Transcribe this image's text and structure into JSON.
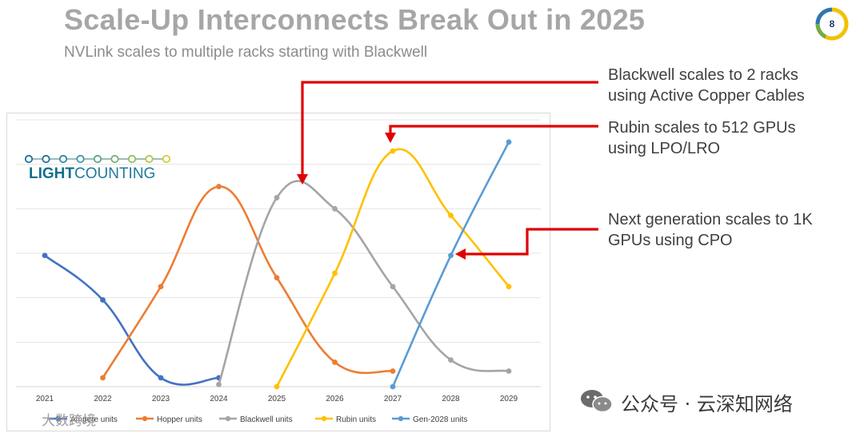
{
  "slide": {
    "title": "Scale-Up Interconnects Break Out in 2025",
    "subtitle": "NVLink scales to multiple racks starting with Blackwell",
    "page_number": "8"
  },
  "callouts": [
    {
      "line1": "Blackwell scales to 2 racks",
      "line2": "using Active Copper Cables"
    },
    {
      "line1": "Rubin scales to 512 GPUs",
      "line2": "using LPO/LRO"
    },
    {
      "line1": "Next generation scales to 1K",
      "line2": "GPUs using CPO"
    }
  ],
  "logo": {
    "text_part1": "LIGHT",
    "text_part2": "COUNTING"
  },
  "watermark": {
    "text": "公众号 · 云深知网络",
    "corner_text": "大数跨境"
  },
  "colors": {
    "arrow": "#e00000",
    "ampere": "#4472c4",
    "hopper": "#ed7d31",
    "blackwell": "#a5a5a5",
    "rubin": "#ffc000",
    "gen2028": "#5b9bd5"
  },
  "chart_data": {
    "type": "line",
    "title": "",
    "xlabel": "",
    "ylabel": "",
    "ylim": [
      0,
      6
    ],
    "grid": true,
    "categories": [
      "2021",
      "2022",
      "2023",
      "2024",
      "2025",
      "2026",
      "2027",
      "2028",
      "2029"
    ],
    "legend_position": "bottom",
    "series": [
      {
        "name": "Ampere units",
        "color_key": "ampere",
        "points": [
          [
            0,
            2.95
          ],
          [
            1,
            1.95
          ],
          [
            2,
            0.2
          ],
          [
            3,
            0.2
          ]
        ]
      },
      {
        "name": "Hopper units",
        "color_key": "hopper",
        "points": [
          [
            1,
            0.2
          ],
          [
            2,
            2.25
          ],
          [
            3,
            4.5
          ],
          [
            4,
            2.45
          ],
          [
            5,
            0.55
          ],
          [
            6,
            0.35
          ]
        ]
      },
      {
        "name": "Blackwell units",
        "color_key": "blackwell",
        "points": [
          [
            3,
            0.05
          ],
          [
            4,
            4.25
          ],
          [
            5,
            4.0
          ],
          [
            6,
            2.25
          ],
          [
            7,
            0.6
          ],
          [
            8,
            0.35
          ]
        ]
      },
      {
        "name": "Rubin units",
        "color_key": "rubin",
        "points": [
          [
            4,
            0.0
          ],
          [
            5,
            2.55
          ],
          [
            6,
            5.3
          ],
          [
            7,
            3.85
          ],
          [
            8,
            2.25
          ]
        ]
      },
      {
        "name": "Gen-2028 units",
        "color_key": "gen2028",
        "points": [
          [
            6,
            0.0
          ],
          [
            7,
            2.95
          ],
          [
            8,
            5.5
          ]
        ]
      }
    ]
  }
}
